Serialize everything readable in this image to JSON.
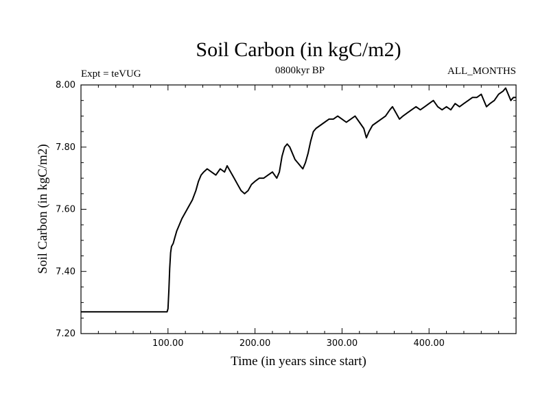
{
  "chart_data": {
    "type": "line",
    "title": "Soil Carbon (in kgC/m2)",
    "subtitle_left": "Expt = teVUG",
    "subtitle_center": "0800kyr BP",
    "subtitle_right": "ALL_MONTHS",
    "xlabel": "Time (in years since start)",
    "ylabel": "Soil Carbon (in kgC/m2)",
    "xlim": [
      0,
      500
    ],
    "ylim": [
      7.2,
      8.0
    ],
    "x_ticks": [
      100,
      200,
      300,
      400
    ],
    "x_tick_labels": [
      "100.00",
      "200.00",
      "300.00",
      "400.00"
    ],
    "y_ticks": [
      7.2,
      7.4,
      7.6,
      7.8,
      8.0
    ],
    "y_tick_labels": [
      "7.20",
      "7.40",
      "7.60",
      "7.80",
      "8.00"
    ],
    "series": [
      {
        "name": "Soil Carbon",
        "color": "#000000",
        "x": [
          0,
          50,
          99,
          100,
          101,
          102,
          103,
          104,
          106,
          108,
          110,
          113,
          116,
          120,
          124,
          128,
          132,
          135,
          138,
          141,
          145,
          150,
          155,
          160,
          165,
          168,
          172,
          176,
          180,
          184,
          188,
          192,
          196,
          200,
          205,
          210,
          215,
          220,
          225,
          228,
          231,
          234,
          237,
          240,
          243,
          246,
          249,
          252,
          255,
          258,
          261,
          264,
          267,
          270,
          275,
          280,
          285,
          290,
          295,
          300,
          305,
          310,
          315,
          320,
          325,
          328,
          331,
          335,
          340,
          345,
          350,
          355,
          358,
          362,
          366,
          370,
          375,
          380,
          385,
          390,
          395,
          400,
          405,
          410,
          415,
          420,
          425,
          430,
          435,
          440,
          445,
          450,
          455,
          460,
          463,
          466,
          470,
          475,
          480,
          485,
          488,
          491,
          494,
          497,
          500
        ],
        "y": [
          7.27,
          7.27,
          7.27,
          7.28,
          7.34,
          7.41,
          7.46,
          7.48,
          7.49,
          7.51,
          7.53,
          7.55,
          7.57,
          7.59,
          7.61,
          7.63,
          7.66,
          7.69,
          7.71,
          7.72,
          7.73,
          7.72,
          7.71,
          7.73,
          7.72,
          7.74,
          7.72,
          7.7,
          7.68,
          7.66,
          7.65,
          7.66,
          7.68,
          7.69,
          7.7,
          7.7,
          7.71,
          7.72,
          7.7,
          7.72,
          7.77,
          7.8,
          7.81,
          7.8,
          7.78,
          7.76,
          7.75,
          7.74,
          7.73,
          7.75,
          7.78,
          7.82,
          7.85,
          7.86,
          7.87,
          7.88,
          7.89,
          7.89,
          7.9,
          7.89,
          7.88,
          7.89,
          7.9,
          7.88,
          7.86,
          7.83,
          7.85,
          7.87,
          7.88,
          7.89,
          7.9,
          7.92,
          7.93,
          7.91,
          7.89,
          7.9,
          7.91,
          7.92,
          7.93,
          7.92,
          7.93,
          7.94,
          7.95,
          7.93,
          7.92,
          7.93,
          7.92,
          7.94,
          7.93,
          7.94,
          7.95,
          7.96,
          7.96,
          7.97,
          7.95,
          7.93,
          7.94,
          7.95,
          7.97,
          7.98,
          7.99,
          7.97,
          7.95,
          7.96,
          7.96
        ]
      }
    ]
  }
}
